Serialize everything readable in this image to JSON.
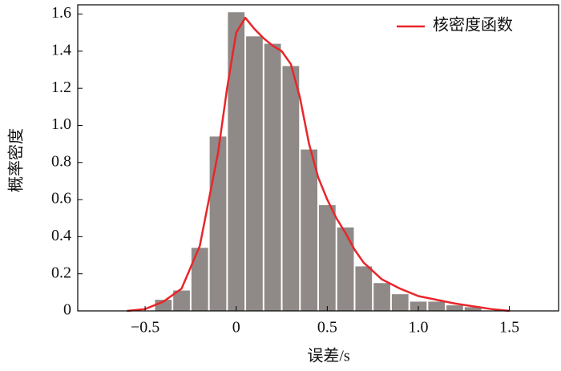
{
  "chart_data": {
    "type": "histogram",
    "x_label": "误差/s",
    "y_label": "概率密度",
    "bins": [
      -0.45,
      -0.35,
      -0.25,
      -0.15,
      -0.05,
      0.05,
      0.15,
      0.25,
      0.35,
      0.45,
      0.55,
      0.65,
      0.75,
      0.85,
      0.95,
      1.05,
      1.15,
      1.25,
      1.35
    ],
    "values": [
      0.06,
      0.11,
      0.34,
      0.94,
      1.61,
      1.48,
      1.44,
      1.32,
      0.87,
      0.57,
      0.45,
      0.24,
      0.15,
      0.09,
      0.05,
      0.05,
      0.03,
      0.02
    ],
    "color": "#8f8a87",
    "series": [
      {
        "name": "核密度函数",
        "color": "#e8262b",
        "x": [
          -0.6,
          -0.5,
          -0.4,
          -0.3,
          -0.2,
          -0.1,
          -0.05,
          0,
          0.05,
          0.1,
          0.15,
          0.2,
          0.25,
          0.3,
          0.35,
          0.4,
          0.45,
          0.5,
          0.55,
          0.6,
          0.65,
          0.7,
          0.8,
          0.9,
          1.0,
          1.1,
          1.2,
          1.3,
          1.4,
          1.5
        ],
        "values": [
          0,
          0.01,
          0.05,
          0.12,
          0.35,
          0.85,
          1.2,
          1.5,
          1.58,
          1.52,
          1.47,
          1.43,
          1.4,
          1.33,
          1.15,
          0.9,
          0.72,
          0.6,
          0.5,
          0.42,
          0.33,
          0.26,
          0.17,
          0.12,
          0.08,
          0.06,
          0.04,
          0.025,
          0.01,
          0
        ]
      }
    ],
    "xlim": [
      -0.87,
      1.77
    ],
    "ylim": [
      0,
      1.65
    ],
    "xticks": [
      {
        "value": -0.5,
        "label": "−0.5"
      },
      0,
      0.5,
      {
        "value": 1,
        "label": "1.0"
      },
      1.5
    ],
    "yticks": [
      0,
      0.2,
      0.4,
      0.6,
      0.8,
      {
        "value": 1,
        "label": "1.0"
      },
      1.2,
      1.4,
      1.6
    ],
    "legend": "upper right"
  }
}
